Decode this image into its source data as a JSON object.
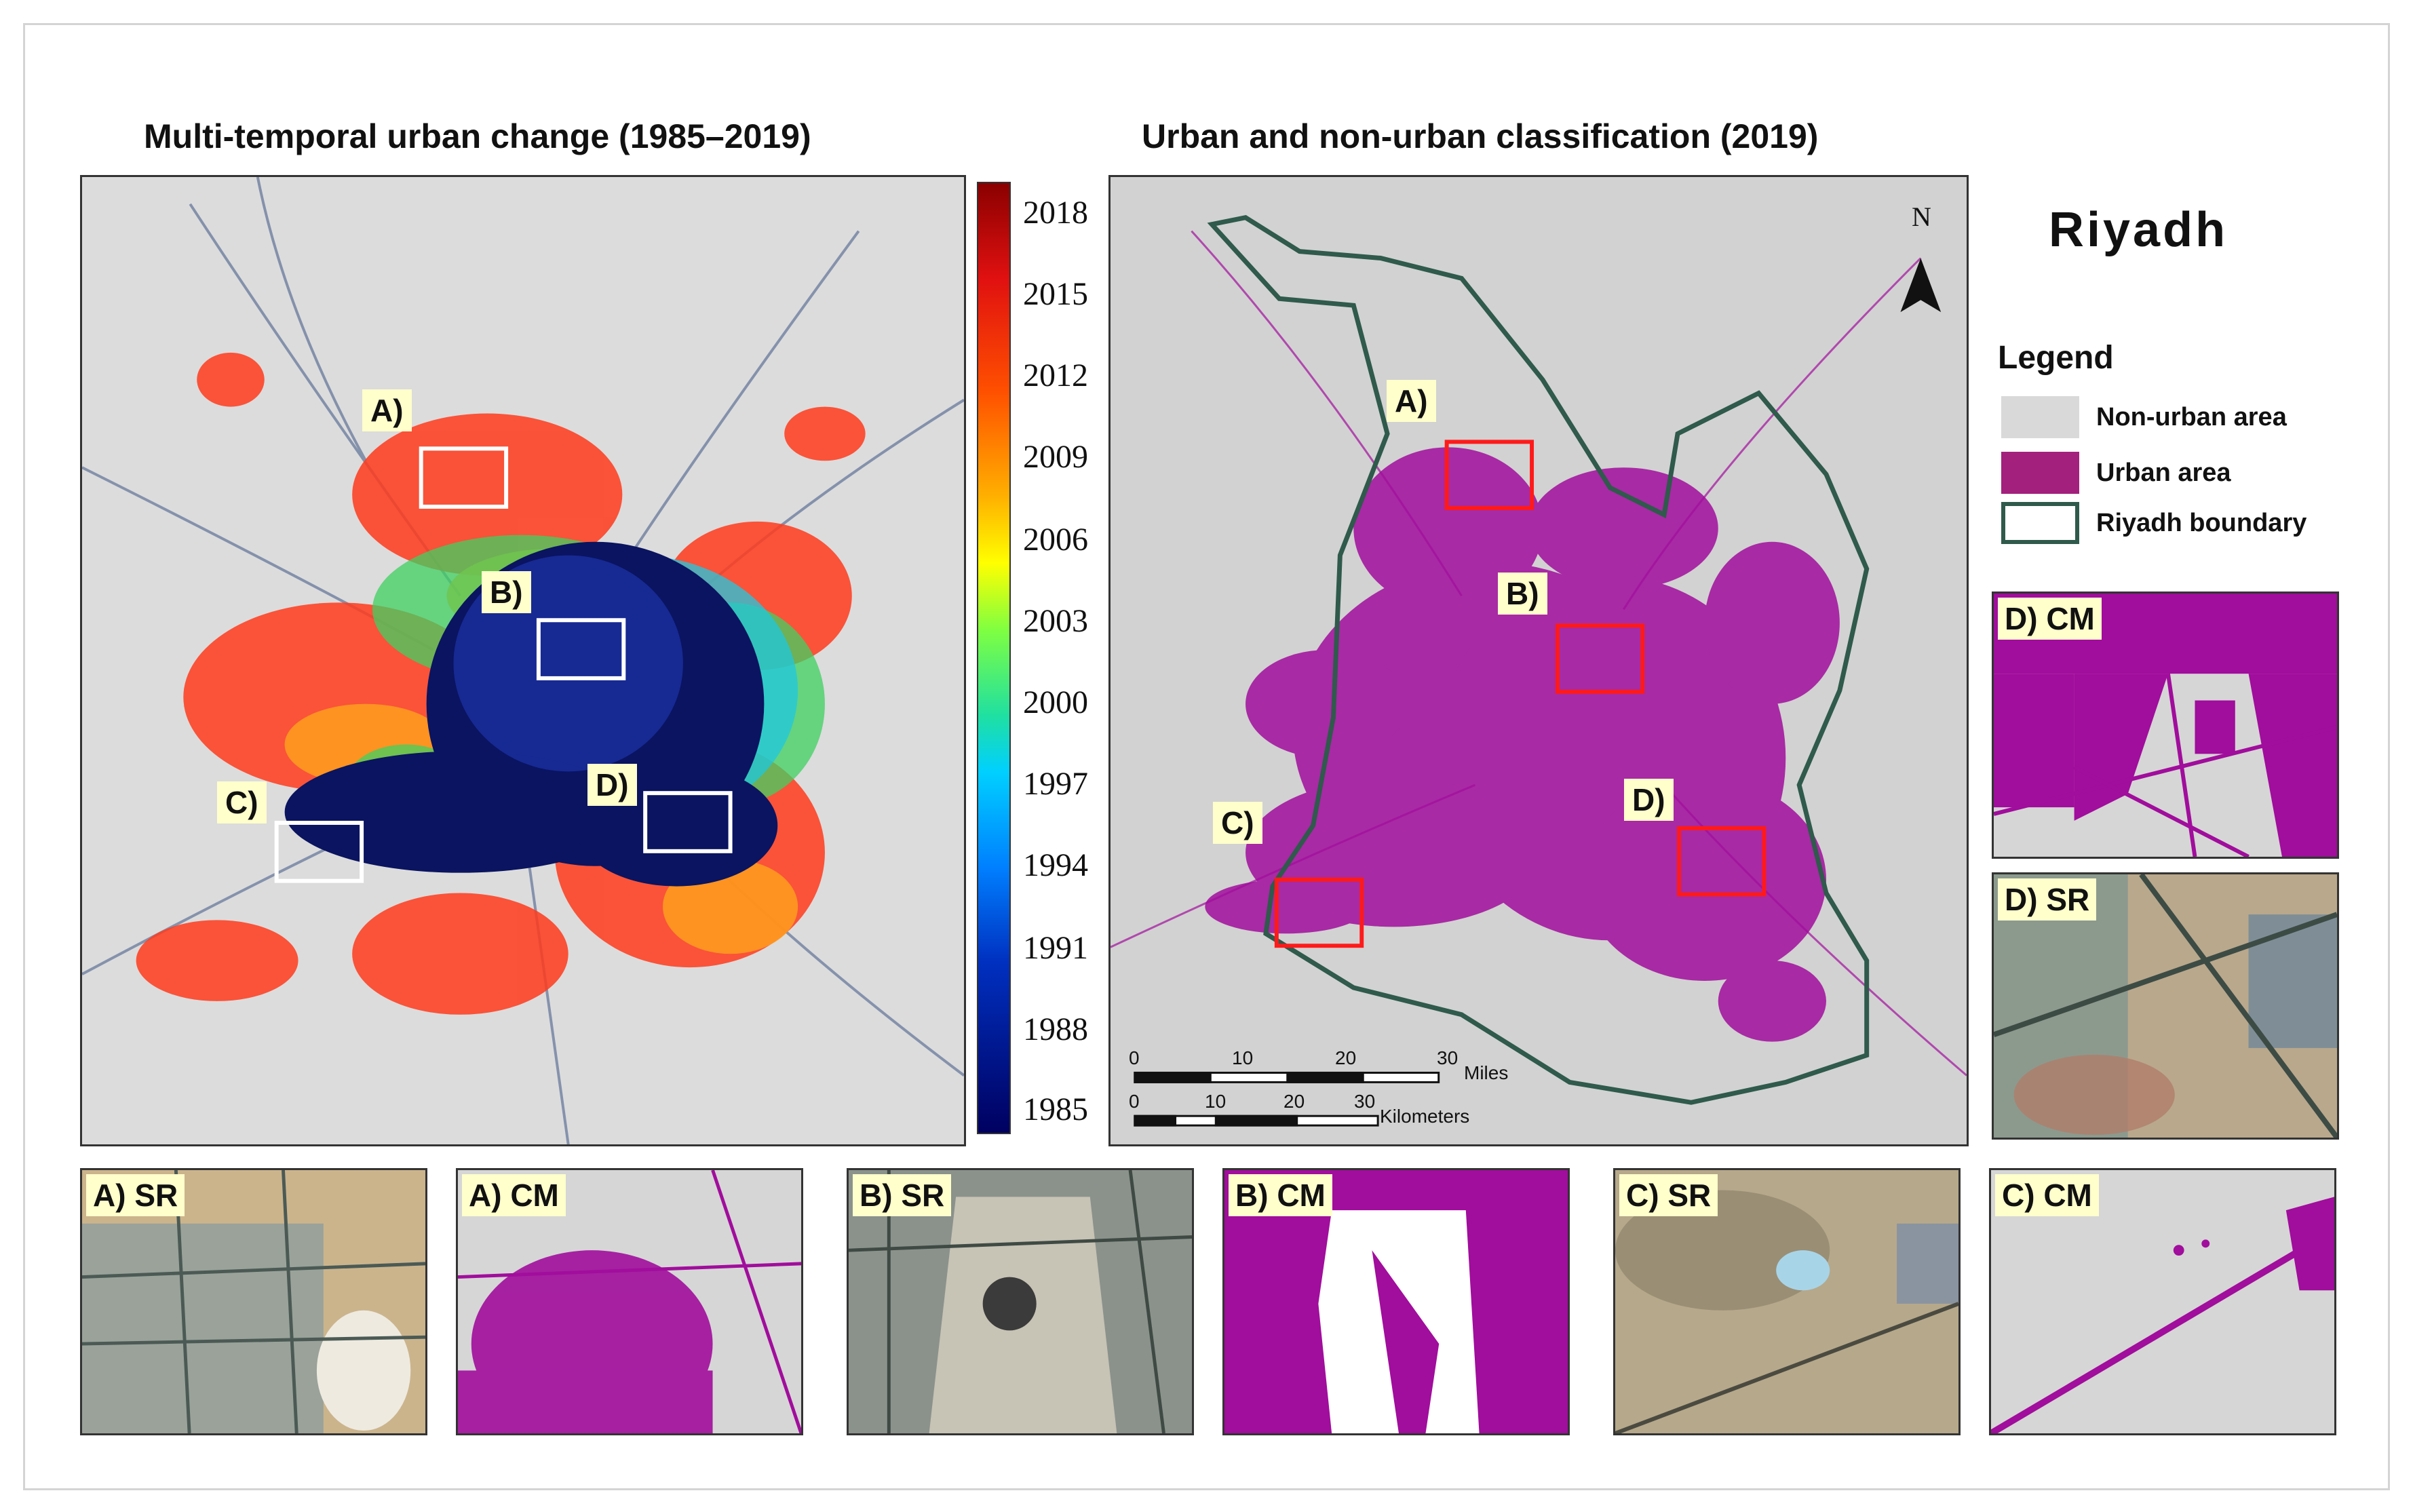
{
  "titles": {
    "left": "Multi-temporal urban change (1985–2019)",
    "right": "Urban and non-urban classification (2019)"
  },
  "colorbar_ticks": [
    "2018",
    "2015",
    "2012",
    "2009",
    "2006",
    "2003",
    "2000",
    "1997",
    "1994",
    "1991",
    "1988",
    "1985"
  ],
  "callouts": {
    "a": "A)",
    "b": "B)",
    "c": "C)",
    "d": "D)"
  },
  "city": "Riyadh",
  "north": "N",
  "legend": {
    "title": "Legend",
    "items": [
      {
        "label": "Non-urban area",
        "color": "#d9d9d9"
      },
      {
        "label": "Urban area",
        "color": "#a3207d"
      },
      {
        "label": "Riyadh boundary",
        "color": "#2f5a4c"
      }
    ]
  },
  "scalebar": {
    "miles_ticks": [
      "0",
      "10",
      "20",
      "30"
    ],
    "miles_unit": "Miles",
    "km_ticks": [
      "0",
      "10",
      "20",
      "30"
    ],
    "km_unit": "Kilometers"
  },
  "insets": {
    "a_sr": "A) SR",
    "a_cm": "A) CM",
    "b_sr": "B) SR",
    "b_cm": "B) CM",
    "c_sr": "C) SR",
    "c_cm": "C) CM",
    "d_cm": "D) CM",
    "d_sr": "D) SR"
  },
  "colors": {
    "urban": "#a10d9c",
    "nonurban": "#d9d9d9",
    "boundary": "#2f5a4c",
    "box_left": "#ffffff",
    "box_right": "#ff1a1a"
  }
}
